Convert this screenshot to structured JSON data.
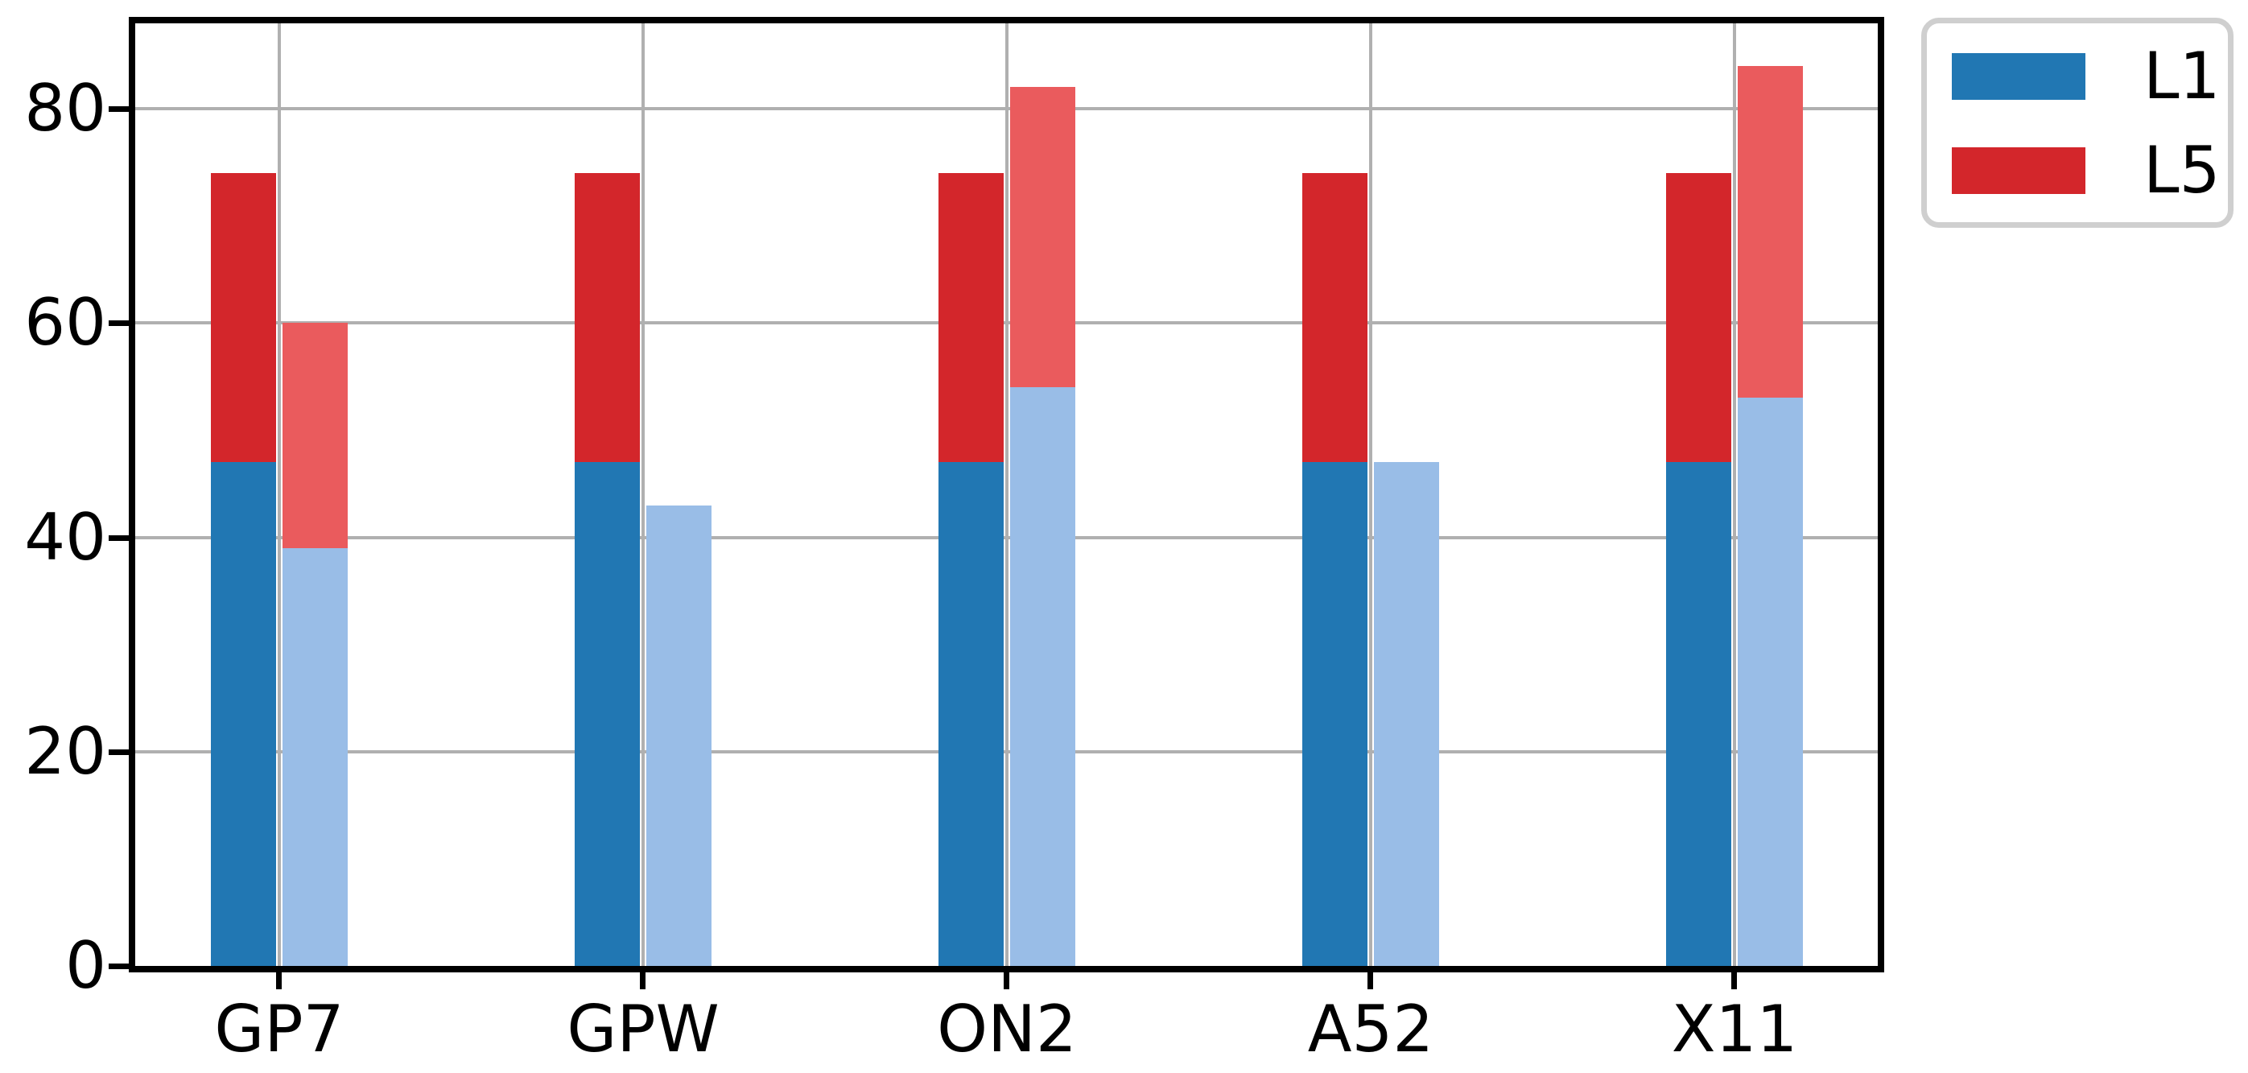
{
  "chart_data": {
    "type": "bar",
    "subtype": "grouped-stacked",
    "title": "",
    "categories": [
      "GP7",
      "GPW",
      "ON2",
      "A52",
      "X11"
    ],
    "bar_groups": [
      {
        "name": "solid-stack",
        "series": [
          {
            "name": "L1",
            "color": "#2177b3",
            "values": [
              47,
              47,
              47,
              47,
              47
            ]
          },
          {
            "name": "L5",
            "color": "#d3262b",
            "values": [
              27,
              27,
              27,
              27,
              27
            ]
          }
        ],
        "stack_totals": [
          74,
          74,
          74,
          74,
          74
        ]
      },
      {
        "name": "faded-stack",
        "series": [
          {
            "name": "L1",
            "color": "#99bde7",
            "values": [
              39,
              43,
              54,
              47,
              53
            ]
          },
          {
            "name": "L5",
            "color": "#ea5b5d",
            "values": [
              21,
              0,
              28,
              0,
              31
            ]
          }
        ],
        "stack_totals": [
          60,
          43,
          82,
          47,
          84
        ]
      }
    ],
    "legend": {
      "position": "outside-upper-right",
      "entries": [
        {
          "label": "L1",
          "color": "#2177b3"
        },
        {
          "label": "L5",
          "color": "#d3262b"
        }
      ]
    },
    "yaxis": {
      "ticks": [
        0,
        20,
        40,
        60,
        80
      ],
      "range": [
        0,
        88.3
      ],
      "gridlines": true
    },
    "xaxis": {
      "tick_labels": [
        "GP7",
        "GPW",
        "ON2",
        "A52",
        "X11"
      ],
      "gridlines": true
    }
  },
  "colors": {
    "background": "#ffffff",
    "grid": "#b0b0b0",
    "spine": "#000000",
    "text": "#000000",
    "legend_border": "#cfcfcf"
  }
}
